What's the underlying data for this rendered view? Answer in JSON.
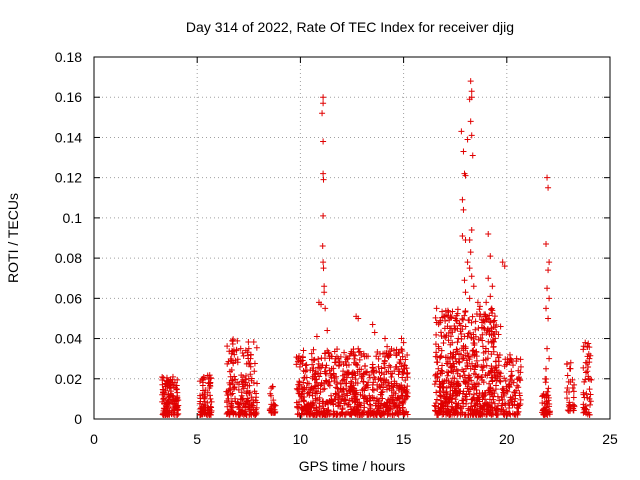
{
  "chart_data": {
    "type": "scatter",
    "title": "Day 314 of 2022, Rate Of TEC Index for receiver djig",
    "xlabel": "GPS time / hours",
    "ylabel": "ROTI / TECUs",
    "xlim": [
      0,
      25
    ],
    "ylim": [
      0,
      0.18
    ],
    "xticks": [
      {
        "value": 0,
        "label": "0"
      },
      {
        "value": 5,
        "label": "5"
      },
      {
        "value": 10,
        "label": "10"
      },
      {
        "value": 15,
        "label": "15"
      },
      {
        "value": 20,
        "label": "20"
      },
      {
        "value": 25,
        "label": "25"
      }
    ],
    "yticks": [
      {
        "value": 0,
        "label": "0"
      },
      {
        "value": 0.02,
        "label": "0.02"
      },
      {
        "value": 0.04,
        "label": "0.04"
      },
      {
        "value": 0.06,
        "label": "0.06"
      },
      {
        "value": 0.08,
        "label": "0.08"
      },
      {
        "value": 0.1,
        "label": "0.1"
      },
      {
        "value": 0.12,
        "label": "0.12"
      },
      {
        "value": 0.14,
        "label": "0.14"
      },
      {
        "value": 0.16,
        "label": "0.16"
      },
      {
        "value": 0.18,
        "label": "0.18"
      }
    ],
    "grid": true,
    "marker": "+",
    "color": "#e00000",
    "series": [
      {
        "name": "ROTI",
        "clusters": [
          {
            "x0": 3.3,
            "x1": 4.1,
            "ymin": 0.002,
            "ymax": 0.021,
            "n": 140
          },
          {
            "x0": 5.1,
            "x1": 5.7,
            "ymin": 0.002,
            "ymax": 0.022,
            "n": 80
          },
          {
            "x0": 6.4,
            "x1": 7.9,
            "ymin": 0.002,
            "ymax": 0.04,
            "n": 190
          },
          {
            "x0": 8.5,
            "x1": 8.8,
            "ymin": 0.003,
            "ymax": 0.017,
            "n": 25
          },
          {
            "x0": 9.8,
            "x1": 15.2,
            "ymin": 0.002,
            "ymax": 0.035,
            "n": 780
          },
          {
            "x0": 16.5,
            "x1": 19.5,
            "ymin": 0.002,
            "ymax": 0.055,
            "n": 620
          },
          {
            "x0": 19.5,
            "x1": 20.7,
            "ymin": 0.002,
            "ymax": 0.032,
            "n": 130
          },
          {
            "x0": 21.7,
            "x1": 22.1,
            "ymin": 0.002,
            "ymax": 0.02,
            "n": 45
          },
          {
            "x0": 22.9,
            "x1": 23.3,
            "ymin": 0.004,
            "ymax": 0.028,
            "n": 30
          },
          {
            "x0": 23.7,
            "x1": 24.1,
            "ymin": 0.002,
            "ymax": 0.038,
            "n": 45
          }
        ],
        "points": [
          [
            11.1,
            0.16
          ],
          [
            11.1,
            0.157
          ],
          [
            11.05,
            0.152
          ],
          [
            11.1,
            0.138
          ],
          [
            11.1,
            0.122
          ],
          [
            11.12,
            0.119
          ],
          [
            11.1,
            0.101
          ],
          [
            11.08,
            0.086
          ],
          [
            11.1,
            0.078
          ],
          [
            11.12,
            0.075
          ],
          [
            11.15,
            0.066
          ],
          [
            11.15,
            0.063
          ],
          [
            10.9,
            0.058
          ],
          [
            11.0,
            0.057
          ],
          [
            11.2,
            0.055
          ],
          [
            11.3,
            0.044
          ],
          [
            10.8,
            0.041
          ],
          [
            12.7,
            0.051
          ],
          [
            12.8,
            0.05
          ],
          [
            13.5,
            0.047
          ],
          [
            13.6,
            0.043
          ],
          [
            17.8,
            0.143
          ],
          [
            17.95,
            0.122
          ],
          [
            18.0,
            0.121
          ],
          [
            18.1,
            0.139
          ],
          [
            17.9,
            0.133
          ],
          [
            18.25,
            0.168
          ],
          [
            18.3,
            0.163
          ],
          [
            18.3,
            0.16
          ],
          [
            18.2,
            0.159
          ],
          [
            18.25,
            0.148
          ],
          [
            18.3,
            0.141
          ],
          [
            18.35,
            0.131
          ],
          [
            17.85,
            0.109
          ],
          [
            17.9,
            0.104
          ],
          [
            17.85,
            0.091
          ],
          [
            18.0,
            0.089
          ],
          [
            18.3,
            0.094
          ],
          [
            18.2,
            0.089
          ],
          [
            18.25,
            0.083
          ],
          [
            18.1,
            0.078
          ],
          [
            18.2,
            0.075
          ],
          [
            18.3,
            0.071
          ],
          [
            17.95,
            0.069
          ],
          [
            18.4,
            0.066
          ],
          [
            18.0,
            0.063
          ],
          [
            18.2,
            0.06
          ],
          [
            18.6,
            0.058
          ],
          [
            18.7,
            0.056
          ],
          [
            19.1,
            0.092
          ],
          [
            19.2,
            0.081
          ],
          [
            19.1,
            0.07
          ],
          [
            19.3,
            0.066
          ],
          [
            19.2,
            0.061
          ],
          [
            19.0,
            0.058
          ],
          [
            18.9,
            0.052
          ],
          [
            19.3,
            0.054
          ],
          [
            19.4,
            0.049
          ],
          [
            19.8,
            0.078
          ],
          [
            19.9,
            0.076
          ],
          [
            19.7,
            0.046
          ],
          [
            16.6,
            0.055
          ],
          [
            16.6,
            0.048
          ],
          [
            17.5,
            0.05
          ],
          [
            17.3,
            0.045
          ],
          [
            18.8,
            0.048
          ],
          [
            19.6,
            0.042
          ],
          [
            21.95,
            0.12
          ],
          [
            22.0,
            0.115
          ],
          [
            21.9,
            0.087
          ],
          [
            22.05,
            0.078
          ],
          [
            22.0,
            0.074
          ],
          [
            21.95,
            0.065
          ],
          [
            22.05,
            0.06
          ],
          [
            21.9,
            0.055
          ],
          [
            22.0,
            0.05
          ],
          [
            21.95,
            0.035
          ],
          [
            22.05,
            0.03
          ],
          [
            21.9,
            0.025
          ],
          [
            6.7,
            0.039
          ],
          [
            7.5,
            0.035
          ],
          [
            7.6,
            0.032
          ],
          [
            6.9,
            0.034
          ],
          [
            14.1,
            0.04
          ],
          [
            14.2,
            0.036
          ],
          [
            14.9,
            0.04
          ],
          [
            15.0,
            0.038
          ],
          [
            10.3,
            0.027
          ],
          [
            12.3,
            0.03
          ],
          [
            12.6,
            0.028
          ],
          [
            13.1,
            0.031
          ],
          [
            23.8,
            0.038
          ],
          [
            23.9,
            0.036
          ],
          [
            23.1,
            0.028
          ],
          [
            24.0,
            0.03
          ]
        ]
      }
    ]
  }
}
